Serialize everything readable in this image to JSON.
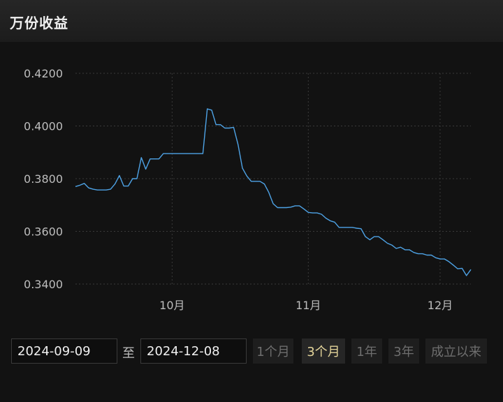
{
  "header": {
    "title": "万份收益"
  },
  "colors": {
    "line": "#4ea3e6",
    "grid": "#3a3a3a",
    "axis_text": "#bdbdbd",
    "active_button_text": "#e3d49a"
  },
  "chart_data": {
    "type": "line",
    "title": "",
    "xlabel": "",
    "ylabel": "",
    "grid": true,
    "ylim": [
      0.34,
      0.42
    ],
    "yticks": [
      "0.4200",
      "0.4000",
      "0.3800",
      "0.3600",
      "0.3400"
    ],
    "ytick_values": [
      0.42,
      0.4,
      0.38,
      0.36,
      0.34
    ],
    "xticks": [
      "10月",
      "11月",
      "12月"
    ],
    "xtick_dates": [
      "2024-10-01",
      "2024-11-01",
      "2024-12-01"
    ],
    "xlim": [
      "2024-09-09",
      "2024-12-08"
    ],
    "series": [
      {
        "x": [
          "2024-09-09",
          "2024-09-10",
          "2024-09-11",
          "2024-09-12",
          "2024-09-13",
          "2024-09-14",
          "2024-09-15",
          "2024-09-16",
          "2024-09-17",
          "2024-09-18",
          "2024-09-19",
          "2024-09-20",
          "2024-09-21",
          "2024-09-22",
          "2024-09-23",
          "2024-09-24",
          "2024-09-25",
          "2024-09-26",
          "2024-09-27",
          "2024-09-28",
          "2024-09-29",
          "2024-09-30",
          "2024-10-01",
          "2024-10-08",
          "2024-10-09",
          "2024-10-10",
          "2024-10-11",
          "2024-10-12",
          "2024-10-13",
          "2024-10-14",
          "2024-10-15",
          "2024-10-16",
          "2024-10-17",
          "2024-10-18",
          "2024-10-19",
          "2024-10-20",
          "2024-10-21",
          "2024-10-22",
          "2024-10-23",
          "2024-10-24",
          "2024-10-25",
          "2024-10-26",
          "2024-10-27",
          "2024-10-28",
          "2024-10-29",
          "2024-10-30",
          "2024-10-31",
          "2024-11-01",
          "2024-11-02",
          "2024-11-03",
          "2024-11-04",
          "2024-11-05",
          "2024-11-06",
          "2024-11-07",
          "2024-11-08",
          "2024-11-09",
          "2024-11-10",
          "2024-11-11",
          "2024-11-12",
          "2024-11-13",
          "2024-11-14",
          "2024-11-15",
          "2024-11-16",
          "2024-11-17",
          "2024-11-18",
          "2024-11-19",
          "2024-11-20",
          "2024-11-21",
          "2024-11-22",
          "2024-11-23",
          "2024-11-24",
          "2024-11-25",
          "2024-11-26",
          "2024-11-27",
          "2024-11-28",
          "2024-11-29",
          "2024-11-30",
          "2024-12-01",
          "2024-12-02",
          "2024-12-03",
          "2024-12-04",
          "2024-12-05",
          "2024-12-06",
          "2024-12-07",
          "2024-12-08"
        ],
        "values": [
          0.377,
          0.3775,
          0.3782,
          0.3765,
          0.376,
          0.3757,
          0.3757,
          0.3757,
          0.376,
          0.378,
          0.3812,
          0.3772,
          0.3772,
          0.38,
          0.38,
          0.388,
          0.3836,
          0.3875,
          0.3875,
          0.3875,
          0.3895,
          0.3895,
          0.3895,
          0.3895,
          0.4065,
          0.406,
          0.4005,
          0.4005,
          0.3992,
          0.3992,
          0.3995,
          0.393,
          0.384,
          0.381,
          0.379,
          0.379,
          0.379,
          0.378,
          0.3748,
          0.3705,
          0.369,
          0.369,
          0.369,
          0.3692,
          0.3697,
          0.3697,
          0.3685,
          0.3672,
          0.367,
          0.367,
          0.3665,
          0.365,
          0.364,
          0.3635,
          0.3615,
          0.3615,
          0.3615,
          0.3615,
          0.3612,
          0.361,
          0.358,
          0.3568,
          0.358,
          0.358,
          0.3568,
          0.3555,
          0.3548,
          0.3535,
          0.354,
          0.353,
          0.353,
          0.352,
          0.3515,
          0.3515,
          0.351,
          0.351,
          0.35,
          0.3495,
          0.3495,
          0.3485,
          0.3472,
          0.3458,
          0.346,
          0.3432,
          0.3455
        ]
      }
    ]
  },
  "controls": {
    "start_date": "2024-09-09",
    "separator": "至",
    "end_date": "2024-12-08",
    "ranges": [
      {
        "label": "1个月",
        "active": false
      },
      {
        "label": "3个月",
        "active": true
      },
      {
        "label": "1年",
        "active": false
      },
      {
        "label": "3年",
        "active": false
      },
      {
        "label": "成立以来",
        "active": false
      }
    ]
  }
}
